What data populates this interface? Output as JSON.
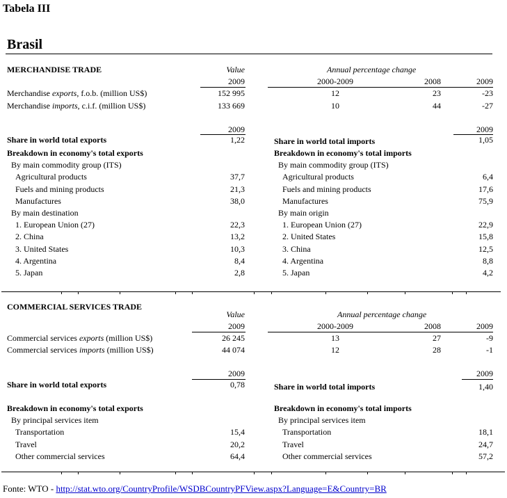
{
  "title": "Tabela III",
  "country": "Brasil",
  "merch": {
    "heading": "MERCHANDISE TRADE",
    "value_label": "Value",
    "apc_label": "Annual percentage change",
    "year": "2009",
    "col_2000": "2000-2009",
    "col_2008": "2008",
    "col_2009": "2009",
    "rows": [
      {
        "pre": "Merchandise ",
        "em": "exports",
        "post": ", f.o.b. (million US$)",
        "value": "152 995",
        "c2000": "12",
        "c2008": "23",
        "c2009": "-23"
      },
      {
        "pre": "Merchandise ",
        "em": "imports",
        "post": ", c.i.f. (million US$)",
        "value": "133 669",
        "c2000": "10",
        "c2008": "44",
        "c2009": "-27"
      }
    ],
    "share_exports": {
      "label": "Share in world total exports",
      "year": "2009",
      "value": "1,22"
    },
    "share_imports": {
      "label": "Share in world total imports",
      "year": "2009",
      "value": "1,05"
    },
    "exp": {
      "title": "Breakdown in economy's total exports",
      "g1": "By main commodity group (ITS)",
      "g1_items": [
        {
          "l": "Agricultural products",
          "v": "37,7"
        },
        {
          "l": "Fuels and mining products",
          "v": "21,3"
        },
        {
          "l": "Manufactures",
          "v": "38,0"
        }
      ],
      "g2": "By main destination",
      "g2_items": [
        {
          "l": "1. European Union (27)",
          "v": "22,3"
        },
        {
          "l": "2. China",
          "v": "13,2"
        },
        {
          "l": "3. United States",
          "v": "10,3"
        },
        {
          "l": "4. Argentina",
          "v": "8,4"
        },
        {
          "l": "5. Japan",
          "v": "2,8"
        }
      ]
    },
    "imp": {
      "title": "Breakdown in economy's total imports",
      "g1": "By main commodity group (ITS)",
      "g1_items": [
        {
          "l": "Agricultural products",
          "v": "6,4"
        },
        {
          "l": "Fuels and mining products",
          "v": "17,6"
        },
        {
          "l": "Manufactures",
          "v": "75,9"
        }
      ],
      "g2": "By main origin",
      "g2_items": [
        {
          "l": "1. European Union (27)",
          "v": "22,9"
        },
        {
          "l": "2. United States",
          "v": "15,8"
        },
        {
          "l": "3. China",
          "v": "12,5"
        },
        {
          "l": "4. Argentina",
          "v": "8,8"
        },
        {
          "l": "5. Japan",
          "v": "4,2"
        }
      ]
    }
  },
  "serv": {
    "heading": "COMMERCIAL SERVICES TRADE",
    "value_label": "Value",
    "apc_label": "Annual percentage change",
    "year": "2009",
    "col_2000": "2000-2009",
    "col_2008": "2008",
    "col_2009": "2009",
    "rows": [
      {
        "pre": "Commercial services ",
        "em": "exports",
        "post": " (million US$)",
        "value": "26 245",
        "c2000": "13",
        "c2008": "27",
        "c2009": "-9"
      },
      {
        "pre": "Commercial services ",
        "em": "imports",
        "post": " (million US$)",
        "value": "44 074",
        "c2000": "12",
        "c2008": "28",
        "c2009": "-1"
      }
    ],
    "share_exports": {
      "label": "Share in world total exports",
      "year": "2009",
      "value": "0,78"
    },
    "share_imports": {
      "label": "Share in world total imports",
      "year": "2009",
      "value": "1,40"
    },
    "exp": {
      "title": "Breakdown in economy's total exports",
      "g1": "By principal services item",
      "g1_items": [
        {
          "l": "Transportation",
          "v": "15,4"
        },
        {
          "l": "Travel",
          "v": "20,2"
        },
        {
          "l": "Other commercial services",
          "v": "64,4"
        }
      ]
    },
    "imp": {
      "title": "Breakdown in economy's total imports",
      "g1": "By principal services item",
      "g1_items": [
        {
          "l": "Transportation",
          "v": "18,1"
        },
        {
          "l": "Travel",
          "v": "24,7"
        },
        {
          "l": "Other commercial services",
          "v": "57,2"
        }
      ]
    }
  },
  "source": {
    "prefix": "Fonte: WTO - ",
    "link": "http://stat.wto.org/CountryProfile/WSDBCountryPFView.aspx?Language=E&Country=BR"
  }
}
